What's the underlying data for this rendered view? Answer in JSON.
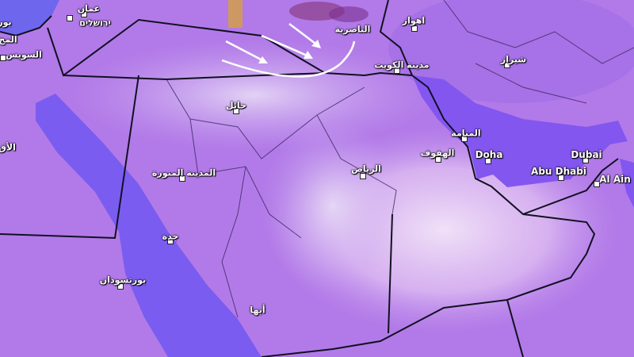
{
  "map": {
    "colors": {
      "land": "#b27ae8",
      "sea": "#7b5cf0",
      "dust": "#efdcf5",
      "border": "#111122",
      "arrow": "#ffffff"
    },
    "cities": [
      {
        "id": "amman",
        "label": "عمان"
      },
      {
        "id": "jerusalem",
        "label": "ירושלים"
      },
      {
        "id": "port-said",
        "label": "بور"
      },
      {
        "id": "mahalla",
        "label": "المح"
      },
      {
        "id": "suez",
        "label": "السويس"
      },
      {
        "id": "luxor",
        "label": "الأق"
      },
      {
        "id": "nasiriyah",
        "label": "الناصرية"
      },
      {
        "id": "ahvaz",
        "label": "اهواز"
      },
      {
        "id": "kuwait",
        "label": "مدينة الكويت"
      },
      {
        "id": "shiraz",
        "label": "شيراز"
      },
      {
        "id": "hail",
        "label": "حائل"
      },
      {
        "id": "manama",
        "label": "المنامة"
      },
      {
        "id": "hofuf",
        "label": "الهفوف"
      },
      {
        "id": "doha",
        "label": "Doha"
      },
      {
        "id": "dubai",
        "label": "Dubai"
      },
      {
        "id": "abu-dhabi",
        "label": "Abu Dhabi"
      },
      {
        "id": "al-ain",
        "label": "Al Ain"
      },
      {
        "id": "riyadh",
        "label": "الرياض"
      },
      {
        "id": "medina",
        "label": "المدينة المنورة"
      },
      {
        "id": "jeddah",
        "label": "جدة"
      },
      {
        "id": "port-sudan",
        "label": "بورتسودان"
      },
      {
        "id": "abha",
        "label": "أبها"
      }
    ]
  }
}
